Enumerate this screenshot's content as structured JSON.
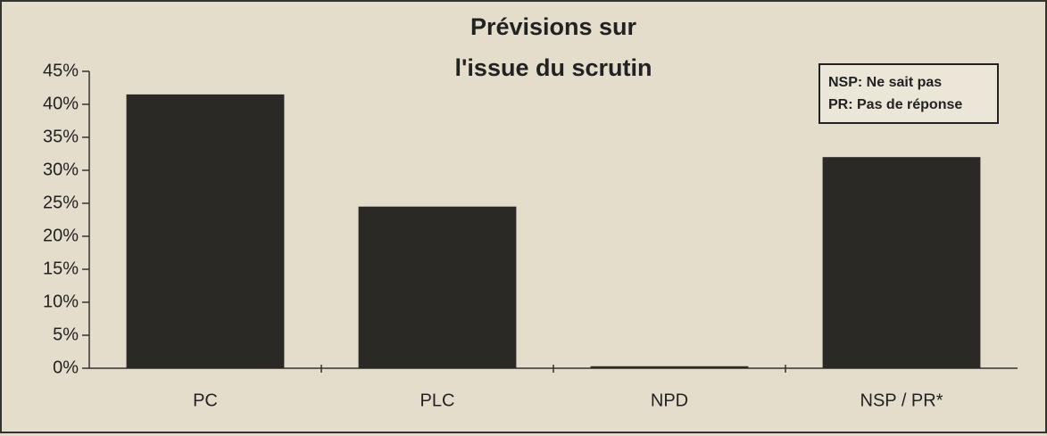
{
  "chart_data": {
    "type": "bar",
    "title": [
      "Prévisions sur",
      "l'issue du scrutin"
    ],
    "annotations": [
      "NSP: Ne sait pas",
      "PR: Pas de réponse"
    ],
    "categories": [
      "PC",
      "PLC",
      "NPD",
      "NSP / PR*"
    ],
    "values": [
      41.5,
      24.5,
      0.3,
      32
    ],
    "color": "#2b2926",
    "ylim": [
      0,
      45
    ],
    "yticks": [
      {
        "value": 0,
        "label": "0%"
      },
      {
        "value": 5,
        "label": "5%"
      },
      {
        "value": 10,
        "label": "10%"
      },
      {
        "value": 15,
        "label": "15%"
      },
      {
        "value": 20,
        "label": "20%"
      },
      {
        "value": 25,
        "label": "25%"
      },
      {
        "value": 30,
        "label": "30%"
      },
      {
        "value": 35,
        "label": "35%"
      },
      {
        "value": 40,
        "label": "40%"
      },
      {
        "value": 45,
        "label": "45%"
      }
    ],
    "grid": false
  }
}
